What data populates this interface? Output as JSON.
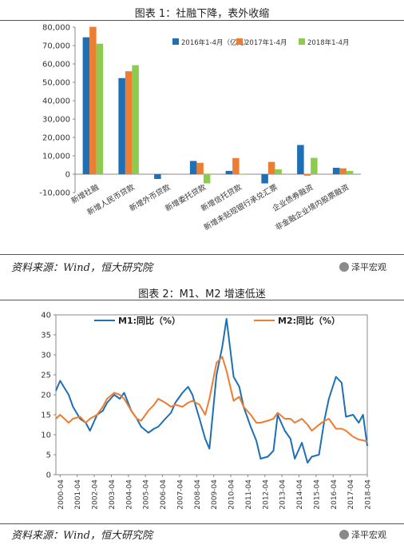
{
  "figure1": {
    "title": "图表 1：社融下降，表外收缩",
    "source": "资料来源：Wind，恒大研究院",
    "watermark": "泽平宏观"
  },
  "figure2": {
    "title": "图表 2：M1、M2 增速低迷",
    "source": "资料来源：Wind，恒大研究院",
    "watermark": "泽平宏观"
  },
  "colors": {
    "s2016": "#1f6fb4",
    "s2017": "#ed7d31",
    "s2018": "#8dcb4f",
    "m1": "#1f6fb4",
    "m2": "#ed7d31"
  },
  "chart_data": [
    {
      "type": "bar",
      "categories": [
        "新增社融",
        "新增人民币贷款",
        "新增外币贷款",
        "新增委托贷款",
        "新增信托贷款",
        "新增未贴现银行承兑汇票",
        "企业债券融资",
        "非金融企业境内股票融资"
      ],
      "series": [
        {
          "name": "2016年1-4月（亿元）",
          "values": [
            74500,
            52300,
            -2600,
            7200,
            1800,
            -5000,
            15900,
            3500
          ]
        },
        {
          "name": "2017年1-4月",
          "values": [
            80200,
            56000,
            300,
            6200,
            8800,
            6700,
            -800,
            3200
          ]
        },
        {
          "name": "2018年1-4月",
          "values": [
            71000,
            59300,
            300,
            -5000,
            100,
            2700,
            8900,
            1800
          ]
        }
      ],
      "ylim": [
        -10000,
        80000
      ],
      "yticks": [
        "-10,000",
        "0",
        "10,000",
        "20,000",
        "30,000",
        "40,000",
        "50,000",
        "60,000",
        "70,000",
        "80,000"
      ],
      "legend_position": "top-right"
    },
    {
      "type": "line",
      "x": [
        "2000-04",
        "2001-04",
        "2002-04",
        "2003-04",
        "2004-04",
        "2005-04",
        "2006-04",
        "2007-04",
        "2008-04",
        "2009-04",
        "2010-04",
        "2011-04",
        "2012-04",
        "2013-04",
        "2014-04",
        "2015-04",
        "2016-04",
        "2017-04",
        "2018-04"
      ],
      "series": [
        {
          "name": "M1:同比（%）",
          "points": [
            [
              "2000-01",
              21
            ],
            [
              "2000-04",
              23.5
            ],
            [
              "2000-10",
              20
            ],
            [
              "2001-01",
              17
            ],
            [
              "2001-06",
              14
            ],
            [
              "2001-10",
              13
            ],
            [
              "2002-01",
              11
            ],
            [
              "2002-06",
              15
            ],
            [
              "2002-10",
              16
            ],
            [
              "2003-01",
              18
            ],
            [
              "2003-06",
              20
            ],
            [
              "2003-10",
              19
            ],
            [
              "2004-01",
              20.5
            ],
            [
              "2004-06",
              16
            ],
            [
              "2004-10",
              14
            ],
            [
              "2005-01",
              12
            ],
            [
              "2005-06",
              10.5
            ],
            [
              "2005-10",
              11.5
            ],
            [
              "2006-01",
              12
            ],
            [
              "2006-06",
              14
            ],
            [
              "2006-10",
              15.5
            ],
            [
              "2007-01",
              18
            ],
            [
              "2007-06",
              20.5
            ],
            [
              "2007-10",
              22
            ],
            [
              "2008-01",
              20
            ],
            [
              "2008-06",
              14
            ],
            [
              "2008-10",
              9
            ],
            [
              "2009-01",
              6.5
            ],
            [
              "2009-06",
              25
            ],
            [
              "2009-10",
              32
            ],
            [
              "2010-01",
              39
            ],
            [
              "2010-06",
              24.5
            ],
            [
              "2010-10",
              22
            ],
            [
              "2011-01",
              17
            ],
            [
              "2011-06",
              12
            ],
            [
              "2011-10",
              8.5
            ],
            [
              "2012-01",
              4
            ],
            [
              "2012-06",
              4.5
            ],
            [
              "2012-10",
              6
            ],
            [
              "2013-01",
              15
            ],
            [
              "2013-06",
              11
            ],
            [
              "2013-10",
              9
            ],
            [
              "2014-01",
              4
            ],
            [
              "2014-06",
              8
            ],
            [
              "2014-10",
              3
            ],
            [
              "2015-01",
              4.5
            ],
            [
              "2015-06",
              5
            ],
            [
              "2015-10",
              14
            ],
            [
              "2016-01",
              19
            ],
            [
              "2016-06",
              24.5
            ],
            [
              "2016-10",
              23
            ],
            [
              "2017-01",
              14.5
            ],
            [
              "2017-06",
              15
            ],
            [
              "2017-10",
              13
            ],
            [
              "2018-01",
              15
            ],
            [
              "2018-04",
              7.2
            ]
          ]
        },
        {
          "name": "M2:同比（%）",
          "points": [
            [
              "2000-01",
              14
            ],
            [
              "2000-04",
              15
            ],
            [
              "2000-10",
              13
            ],
            [
              "2001-01",
              14
            ],
            [
              "2001-06",
              14.5
            ],
            [
              "2001-10",
              13
            ],
            [
              "2002-01",
              14
            ],
            [
              "2002-06",
              15
            ],
            [
              "2002-10",
              17
            ],
            [
              "2003-01",
              19
            ],
            [
              "2003-06",
              20.5
            ],
            [
              "2003-10",
              20
            ],
            [
              "2004-01",
              19
            ],
            [
              "2004-06",
              16
            ],
            [
              "2004-10",
              14
            ],
            [
              "2005-01",
              13.5
            ],
            [
              "2005-06",
              16
            ],
            [
              "2005-10",
              17.5
            ],
            [
              "2006-01",
              19
            ],
            [
              "2006-06",
              18
            ],
            [
              "2006-10",
              17
            ],
            [
              "2007-01",
              17.5
            ],
            [
              "2007-06",
              17
            ],
            [
              "2007-10",
              18
            ],
            [
              "2008-01",
              18.5
            ],
            [
              "2008-06",
              17.5
            ],
            [
              "2008-10",
              15
            ],
            [
              "2009-01",
              19
            ],
            [
              "2009-06",
              28
            ],
            [
              "2009-10",
              29.5
            ],
            [
              "2010-01",
              26
            ],
            [
              "2010-06",
              18.5
            ],
            [
              "2010-10",
              19.5
            ],
            [
              "2011-01",
              17
            ],
            [
              "2011-06",
              15
            ],
            [
              "2011-10",
              13
            ],
            [
              "2012-01",
              13
            ],
            [
              "2012-06",
              13.5
            ],
            [
              "2012-10",
              14
            ],
            [
              "2013-01",
              15.5
            ],
            [
              "2013-06",
              14
            ],
            [
              "2013-10",
              14
            ],
            [
              "2014-01",
              13
            ],
            [
              "2014-06",
              14
            ],
            [
              "2014-10",
              12.5
            ],
            [
              "2015-01",
              11
            ],
            [
              "2015-06",
              12.5
            ],
            [
              "2015-10",
              13.5
            ],
            [
              "2016-01",
              14
            ],
            [
              "2016-06",
              11.5
            ],
            [
              "2016-10",
              11.5
            ],
            [
              "2017-01",
              11
            ],
            [
              "2017-06",
              9.5
            ],
            [
              "2017-10",
              8.8
            ],
            [
              "2018-01",
              8.6
            ],
            [
              "2018-04",
              8.3
            ]
          ]
        }
      ],
      "ylim": [
        0,
        40
      ],
      "yticks": [
        "0",
        "5",
        "10",
        "15",
        "20",
        "25",
        "30",
        "35",
        "40"
      ],
      "legend_position": "top",
      "grid": false
    }
  ]
}
